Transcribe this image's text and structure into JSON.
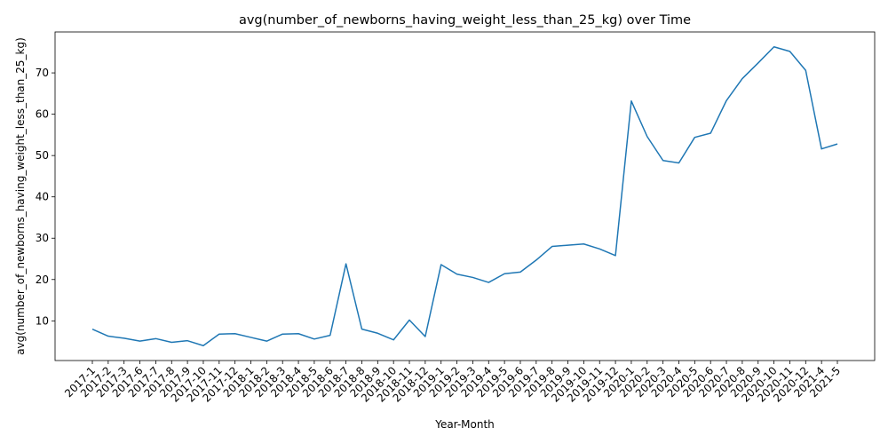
{
  "chart_data": {
    "type": "line",
    "title": "avg(number_of_newborns_having_weight_less_than_25_kg) over Time",
    "xlabel": "Year-Month",
    "ylabel": "avg(number_of_newborns_having_weight_less_than_25_kg)",
    "x": [
      "2017-1",
      "2017-2",
      "2017-3",
      "2017-6",
      "2017-7",
      "2017-8",
      "2017-9",
      "2017-10",
      "2017-11",
      "2017-12",
      "2018-1",
      "2018-2",
      "2018-3",
      "2018-4",
      "2018-5",
      "2018-6",
      "2018-7",
      "2018-8",
      "2018-9",
      "2018-10",
      "2018-11",
      "2018-12",
      "2019-1",
      "2019-2",
      "2019-3",
      "2019-4",
      "2019-5",
      "2019-6",
      "2019-7",
      "2019-8",
      "2019-9",
      "2019-10",
      "2019-11",
      "2019-12",
      "2020-1",
      "2020-2",
      "2020-3",
      "2020-4",
      "2020-5",
      "2020-6",
      "2020-7",
      "2020-8",
      "2020-9",
      "2020-10",
      "2020-11",
      "2020-12",
      "2021-4",
      "2021-5"
    ],
    "series": [
      {
        "values": [
          8.0,
          6.3,
          5.8,
          5.1,
          5.7,
          4.8,
          5.2,
          4.0,
          6.8,
          6.9,
          6.0,
          5.1,
          6.8,
          6.9,
          5.6,
          6.5,
          23.8,
          8.0,
          7.0,
          5.4,
          10.2,
          6.2,
          23.6,
          21.3,
          20.5,
          19.3,
          21.4,
          21.8,
          24.7,
          28.0,
          28.3,
          28.6,
          27.4,
          25.8,
          63.2,
          54.6,
          48.8,
          48.2,
          54.4,
          55.4,
          63.3,
          68.6,
          72.4,
          76.3,
          75.2,
          70.6,
          51.6,
          52.8
        ],
        "color": "#1f77b4"
      }
    ],
    "yticks": [
      10,
      20,
      30,
      40,
      50,
      60,
      70
    ],
    "ylim": [
      0.4,
      79.9
    ],
    "grid": false,
    "legend": "none"
  }
}
